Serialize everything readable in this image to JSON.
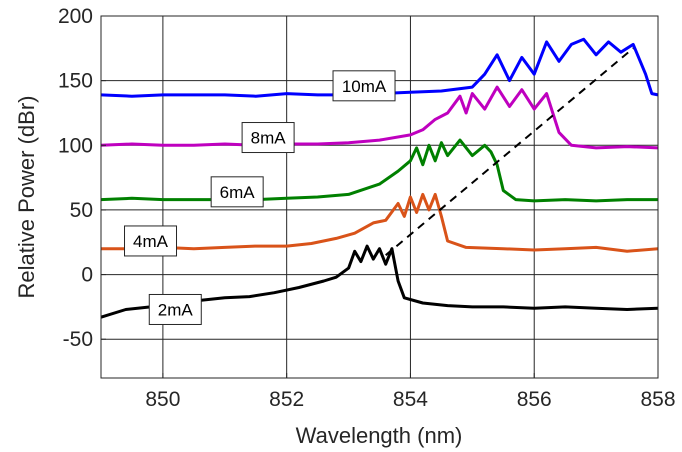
{
  "chart_data": {
    "type": "line",
    "title": "",
    "xlabel": "Wavelength (nm)",
    "ylabel": "Relative Power (dBr)",
    "xlim": [
      849,
      858
    ],
    "ylim": [
      -80,
      200
    ],
    "xticks": [
      850,
      852,
      854,
      856,
      858
    ],
    "yticks": [
      -50,
      0,
      50,
      100,
      150,
      200
    ],
    "grid": true,
    "series": [
      {
        "name": "2mA",
        "color": "#000000",
        "points": [
          [
            849,
            -33
          ],
          [
            849.4,
            -27
          ],
          [
            849.8,
            -25
          ],
          [
            850.2,
            -22
          ],
          [
            850.6,
            -20
          ],
          [
            851,
            -18
          ],
          [
            851.4,
            -17
          ],
          [
            851.8,
            -14
          ],
          [
            852.2,
            -10
          ],
          [
            852.6,
            -5
          ],
          [
            852.8,
            -2
          ],
          [
            853,
            5
          ],
          [
            853.1,
            18
          ],
          [
            853.2,
            10
          ],
          [
            853.3,
            22
          ],
          [
            853.4,
            12
          ],
          [
            853.5,
            20
          ],
          [
            853.6,
            8
          ],
          [
            853.7,
            20
          ],
          [
            853.8,
            -5
          ],
          [
            853.9,
            -18
          ],
          [
            854.2,
            -22
          ],
          [
            854.6,
            -24
          ],
          [
            855,
            -25
          ],
          [
            855.5,
            -25
          ],
          [
            856,
            -26
          ],
          [
            856.5,
            -25
          ],
          [
            857,
            -26
          ],
          [
            857.5,
            -27
          ],
          [
            858,
            -26
          ]
        ]
      },
      {
        "name": "4mA",
        "color": "#d95319",
        "points": [
          [
            849,
            20
          ],
          [
            849.5,
            20
          ],
          [
            850,
            21
          ],
          [
            850.5,
            20
          ],
          [
            851,
            21
          ],
          [
            851.5,
            22
          ],
          [
            852,
            22
          ],
          [
            852.4,
            24
          ],
          [
            852.8,
            28
          ],
          [
            853.1,
            32
          ],
          [
            853.4,
            40
          ],
          [
            853.6,
            42
          ],
          [
            853.8,
            55
          ],
          [
            853.9,
            45
          ],
          [
            854,
            60
          ],
          [
            854.1,
            48
          ],
          [
            854.2,
            62
          ],
          [
            854.3,
            50
          ],
          [
            854.4,
            62
          ],
          [
            854.5,
            45
          ],
          [
            854.6,
            26
          ],
          [
            854.9,
            21
          ],
          [
            855.5,
            20
          ],
          [
            856,
            19
          ],
          [
            856.5,
            20
          ],
          [
            857,
            21
          ],
          [
            857.5,
            18
          ],
          [
            858,
            20
          ]
        ]
      },
      {
        "name": "6mA",
        "color": "#008000",
        "points": [
          [
            849,
            58
          ],
          [
            849.5,
            59
          ],
          [
            850,
            58
          ],
          [
            850.5,
            58
          ],
          [
            851,
            58
          ],
          [
            851.5,
            58
          ],
          [
            852,
            59
          ],
          [
            852.5,
            60
          ],
          [
            853,
            62
          ],
          [
            853.5,
            70
          ],
          [
            853.8,
            80
          ],
          [
            854,
            88
          ],
          [
            854.1,
            98
          ],
          [
            854.2,
            85
          ],
          [
            854.3,
            100
          ],
          [
            854.4,
            88
          ],
          [
            854.5,
            102
          ],
          [
            854.6,
            92
          ],
          [
            854.8,
            104
          ],
          [
            855,
            92
          ],
          [
            855.2,
            100
          ],
          [
            855.3,
            95
          ],
          [
            855.4,
            85
          ],
          [
            855.5,
            65
          ],
          [
            855.7,
            58
          ],
          [
            856,
            57
          ],
          [
            856.5,
            58
          ],
          [
            857,
            57
          ],
          [
            857.5,
            58
          ],
          [
            858,
            58
          ]
        ]
      },
      {
        "name": "8mA",
        "color": "#bf00bf",
        "points": [
          [
            849,
            100
          ],
          [
            849.5,
            101
          ],
          [
            850,
            100
          ],
          [
            850.5,
            100
          ],
          [
            851,
            101
          ],
          [
            851.5,
            100
          ],
          [
            852,
            101
          ],
          [
            852.5,
            101
          ],
          [
            853,
            102
          ],
          [
            853.5,
            104
          ],
          [
            854,
            108
          ],
          [
            854.2,
            112
          ],
          [
            854.4,
            120
          ],
          [
            854.6,
            125
          ],
          [
            854.8,
            138
          ],
          [
            854.9,
            125
          ],
          [
            855,
            140
          ],
          [
            855.2,
            128
          ],
          [
            855.4,
            145
          ],
          [
            855.6,
            130
          ],
          [
            855.8,
            143
          ],
          [
            856,
            128
          ],
          [
            856.2,
            140
          ],
          [
            856.3,
            125
          ],
          [
            856.4,
            110
          ],
          [
            856.6,
            100
          ],
          [
            857,
            98
          ],
          [
            857.5,
            99
          ],
          [
            858,
            98
          ]
        ]
      },
      {
        "name": "10mA",
        "color": "#0000ff",
        "points": [
          [
            849,
            139
          ],
          [
            849.5,
            138
          ],
          [
            850,
            139
          ],
          [
            850.5,
            139
          ],
          [
            851,
            139
          ],
          [
            851.5,
            138
          ],
          [
            852,
            140
          ],
          [
            852.5,
            139
          ],
          [
            853,
            139
          ],
          [
            853.5,
            140
          ],
          [
            854,
            141
          ],
          [
            854.5,
            142
          ],
          [
            855,
            145
          ],
          [
            855.2,
            155
          ],
          [
            855.4,
            170
          ],
          [
            855.6,
            150
          ],
          [
            855.8,
            168
          ],
          [
            856,
            155
          ],
          [
            856.2,
            180
          ],
          [
            856.4,
            165
          ],
          [
            856.6,
            178
          ],
          [
            856.8,
            182
          ],
          [
            857,
            170
          ],
          [
            857.2,
            180
          ],
          [
            857.4,
            172
          ],
          [
            857.6,
            178
          ],
          [
            857.8,
            155
          ],
          [
            857.9,
            140
          ],
          [
            858,
            139
          ]
        ]
      },
      {
        "name": "",
        "color": "#000000",
        "dashed": true,
        "points": [
          [
            853.6,
            15
          ],
          [
            857.6,
            175
          ]
        ]
      }
    ],
    "annotations": [
      {
        "text": "2mA",
        "x": 850.2,
        "y": -27
      },
      {
        "text": "4mA",
        "x": 849.8,
        "y": 26
      },
      {
        "text": "6mA",
        "x": 851.2,
        "y": 64
      },
      {
        "text": "8mA",
        "x": 851.7,
        "y": 106
      },
      {
        "text": "10mA",
        "x": 853.25,
        "y": 146
      }
    ]
  }
}
